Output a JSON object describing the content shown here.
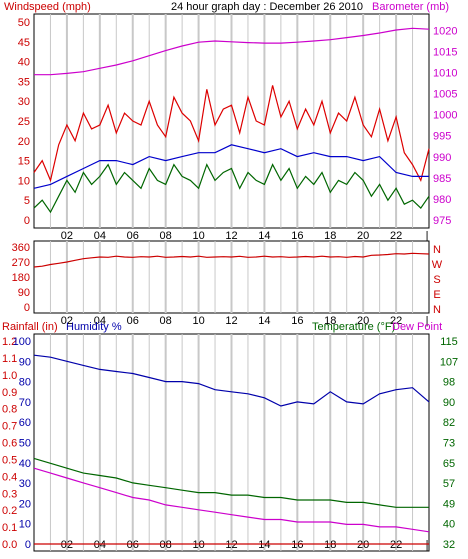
{
  "title": "24 hour graph day : December 26 2010",
  "colors": {
    "wind_speed": "#cc0000",
    "wind_gust": "#dd0000",
    "wind_avg": "#0000cc",
    "wind_dir": "#cc0000",
    "barometer": "#cc00cc",
    "humidity": "#0000aa",
    "temperature": "#006600",
    "dew_point": "#cc00cc",
    "rainfall": "#cc0000",
    "grid": "#c8c8c8",
    "frame": "#000000"
  },
  "chart_data": [
    {
      "id": "wind_baro",
      "type": "line",
      "title": "24 hour graph day : December 26 2010",
      "left_label": "Windspeed (mph)",
      "right_label": "Barometer (mb)",
      "x_ticks": [
        "02",
        "04",
        "06",
        "08",
        "10",
        "12",
        "14",
        "16",
        "18",
        "20",
        "22"
      ],
      "y_left_ticks": [
        "0",
        "5",
        "10",
        "15",
        "20",
        "25",
        "30",
        "35",
        "40",
        "45",
        "50"
      ],
      "y_right_ticks": [
        "975",
        "980",
        "985",
        "990",
        "995",
        "1000",
        "1005",
        "1010",
        "1015",
        "1020"
      ],
      "ylim_left": [
        0,
        50
      ],
      "ylim_right": [
        975,
        1022
      ],
      "xlim": [
        0,
        24
      ],
      "series": [
        {
          "name": "Barometer",
          "axis": "right",
          "x": [
            0,
            1,
            2,
            3,
            4,
            5,
            6,
            7,
            8,
            9,
            10,
            11,
            12,
            13,
            14,
            15,
            16,
            17,
            18,
            19,
            20,
            21,
            22,
            23,
            24
          ],
          "values": [
            1009.5,
            1009.5,
            1009.8,
            1010.2,
            1011,
            1011.8,
            1012.8,
            1014,
            1015.2,
            1016.3,
            1017.2,
            1017.5,
            1017.3,
            1017.1,
            1017,
            1017,
            1017.2,
            1017.5,
            1017.8,
            1018.3,
            1018.8,
            1019.4,
            1020.1,
            1020.5,
            1020.3
          ]
        },
        {
          "name": "Gust",
          "axis": "left",
          "x": [
            0,
            0.5,
            1,
            1.5,
            2,
            2.5,
            3,
            3.5,
            4,
            4.5,
            5,
            5.5,
            6,
            6.5,
            7,
            7.5,
            8,
            8.5,
            9,
            9.5,
            10,
            10.5,
            11,
            11.5,
            12,
            12.5,
            13,
            13.5,
            14,
            14.5,
            15,
            15.5,
            16,
            16.5,
            17,
            17.5,
            18,
            18.5,
            19,
            19.5,
            20,
            20.5,
            21,
            21.5,
            22,
            22.5,
            23,
            23.5,
            24
          ],
          "values": [
            12,
            15,
            10,
            19,
            24,
            20,
            27,
            23,
            24,
            29,
            22,
            27,
            25,
            24,
            30,
            24,
            21,
            31,
            27,
            25,
            20,
            33,
            24,
            28,
            29,
            22,
            31,
            25,
            24,
            34,
            26,
            30,
            23,
            28,
            24,
            30,
            22,
            27,
            25,
            31,
            24,
            21,
            28,
            20,
            26,
            17,
            14,
            10,
            18
          ]
        },
        {
          "name": "Average",
          "axis": "left",
          "x": [
            0,
            1,
            2,
            3,
            4,
            5,
            6,
            7,
            8,
            9,
            10,
            11,
            12,
            13,
            14,
            15,
            16,
            17,
            18,
            19,
            20,
            21,
            22,
            23,
            24
          ],
          "values": [
            8,
            9,
            11,
            13,
            15,
            15,
            14,
            16,
            15,
            16,
            17,
            17,
            19,
            18,
            17,
            18,
            16,
            17,
            16,
            16,
            15,
            16,
            12,
            11,
            11
          ]
        },
        {
          "name": "Speed",
          "axis": "left",
          "x": [
            0,
            0.5,
            1,
            1.5,
            2,
            2.5,
            3,
            3.5,
            4,
            4.5,
            5,
            5.5,
            6,
            6.5,
            7,
            7.5,
            8,
            8.5,
            9,
            9.5,
            10,
            10.5,
            11,
            11.5,
            12,
            12.5,
            13,
            13.5,
            14,
            14.5,
            15,
            15.5,
            16,
            16.5,
            17,
            17.5,
            18,
            18.5,
            19,
            19.5,
            20,
            20.5,
            21,
            21.5,
            22,
            22.5,
            23,
            23.5,
            24
          ],
          "values": [
            3,
            5,
            2,
            6,
            10,
            7,
            12,
            9,
            11,
            14,
            9,
            12,
            10,
            8,
            13,
            10,
            9,
            14,
            11,
            10,
            8,
            14,
            10,
            12,
            13,
            8,
            12,
            10,
            9,
            14,
            10,
            13,
            8,
            11,
            9,
            12,
            7,
            10,
            9,
            12,
            10,
            6,
            9,
            5,
            8,
            4,
            5,
            3,
            6
          ]
        }
      ]
    },
    {
      "id": "wind_dir",
      "type": "line",
      "x_ticks": [
        "02",
        "04",
        "06",
        "08",
        "10",
        "12",
        "14",
        "16",
        "18",
        "20",
        "22"
      ],
      "y_left_ticks": [
        "0",
        "90",
        "180",
        "270",
        "360"
      ],
      "compass_labels": [
        "N",
        "W",
        "S",
        "E",
        "N"
      ],
      "ylim": [
        0,
        360
      ],
      "xlim": [
        0,
        24
      ],
      "series": [
        {
          "name": "Wind direction",
          "x": [
            0,
            0.5,
            1,
            1.5,
            2,
            2.5,
            3,
            3.5,
            4,
            4.5,
            5,
            5.5,
            6,
            6.5,
            7,
            7.5,
            8,
            8.5,
            9,
            9.5,
            10,
            10.5,
            11,
            11.5,
            12,
            12.5,
            13,
            13.5,
            14,
            14.5,
            15,
            15.5,
            16,
            16.5,
            17,
            17.5,
            18,
            18.5,
            19,
            19.5,
            20,
            20.5,
            21,
            21.5,
            22,
            22.5,
            23,
            23.5,
            24
          ],
          "values": [
            240,
            245,
            255,
            262,
            270,
            280,
            290,
            295,
            300,
            298,
            305,
            300,
            298,
            302,
            300,
            305,
            298,
            300,
            303,
            300,
            305,
            298,
            300,
            302,
            300,
            304,
            298,
            300,
            305,
            300,
            302,
            298,
            300,
            303,
            300,
            305,
            300,
            302,
            298,
            303,
            300,
            310,
            312,
            315,
            320,
            318,
            322,
            320,
            318
          ]
        }
      ]
    },
    {
      "id": "humidity_temp",
      "type": "line",
      "left_label_rain": "Rainfall (in)",
      "left_label_hum": "Humidity %",
      "right_label_temp": "Temperature (°F)",
      "right_label_dew": "Dew Point",
      "x_ticks": [
        "02",
        "04",
        "06",
        "08",
        "10",
        "12",
        "14",
        "16",
        "18",
        "20",
        "22"
      ],
      "y_humidity_ticks": [
        "0",
        "10",
        "20",
        "30",
        "40",
        "50",
        "60",
        "70",
        "80",
        "90",
        "100"
      ],
      "y_rain_ticks": [
        "0.0",
        "0.1",
        "0.2",
        "0.3",
        "0.4",
        "0.5",
        "0.6",
        "0.7",
        "0.8",
        "0.9",
        "1.0",
        "1.1",
        "1.2"
      ],
      "y_temp_ticks": [
        "32",
        "40",
        "49",
        "57",
        "65",
        "73",
        "82",
        "90",
        "98",
        "107",
        "115"
      ],
      "ylim_humidity": [
        0,
        100
      ],
      "ylim_temp": [
        32,
        115
      ],
      "xlim": [
        0,
        24
      ],
      "series": [
        {
          "name": "Humidity",
          "axis": "humidity",
          "x": [
            0,
            1,
            2,
            3,
            4,
            5,
            6,
            7,
            8,
            9,
            10,
            11,
            12,
            13,
            14,
            15,
            16,
            17,
            18,
            19,
            20,
            21,
            22,
            23,
            24
          ],
          "values": [
            93,
            92,
            90,
            88,
            86,
            85,
            84,
            82,
            80,
            80,
            79,
            76,
            75,
            74,
            72,
            68,
            70,
            69,
            75,
            70,
            69,
            74,
            76,
            77,
            70
          ]
        },
        {
          "name": "Temperature",
          "axis": "temp",
          "x": [
            0,
            1,
            2,
            3,
            4,
            5,
            6,
            7,
            8,
            9,
            10,
            11,
            12,
            13,
            14,
            15,
            16,
            17,
            18,
            19,
            20,
            21,
            22,
            23,
            24
          ],
          "values": [
            67,
            65,
            63,
            61,
            60,
            59,
            57,
            56,
            55,
            54,
            53,
            53,
            52,
            52,
            51,
            51,
            50,
            50,
            50,
            49,
            49,
            48,
            47,
            47,
            47
          ]
        },
        {
          "name": "Dew Point",
          "axis": "temp",
          "x": [
            0,
            1,
            2,
            3,
            4,
            5,
            6,
            7,
            8,
            9,
            10,
            11,
            12,
            13,
            14,
            15,
            16,
            17,
            18,
            19,
            20,
            21,
            22,
            23,
            24
          ],
          "values": [
            63,
            61,
            59,
            57,
            55,
            53,
            51,
            50,
            48,
            47,
            46,
            45,
            44,
            43,
            42,
            42,
            41,
            41,
            41,
            40,
            40,
            39,
            39,
            38,
            37
          ]
        },
        {
          "name": "Rainfall",
          "axis": "rain",
          "x": [
            0,
            24
          ],
          "values": [
            0,
            0
          ]
        }
      ]
    }
  ]
}
